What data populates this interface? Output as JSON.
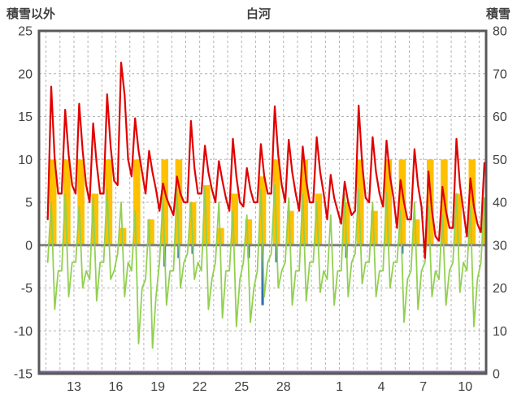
{
  "header": {
    "left_axis_title": "積雪以外",
    "title": "白河",
    "right_axis_title": "積雪"
  },
  "chart_data": {
    "type": "line",
    "title": "白河",
    "style": {
      "grid_color": "#b3b3b3",
      "frame_color": "#595959",
      "zero_line_color": "#808080",
      "text_color": "#404040",
      "background": "#ffffff"
    },
    "left_axis": {
      "label": "積雪以外",
      "min": -15,
      "max": 25,
      "ticks": [
        25,
        20,
        15,
        10,
        5,
        0,
        -5,
        -10,
        -15
      ]
    },
    "right_axis": {
      "label": "積雪",
      "min": 0,
      "max": 80,
      "ticks": [
        80,
        70,
        60,
        50,
        40,
        30,
        20,
        10,
        0
      ]
    },
    "x_axis": {
      "tick_labels": [
        "13",
        "16",
        "19",
        "22",
        "25",
        "28",
        "1",
        "4",
        "7",
        "10"
      ],
      "tick_days": [
        2,
        5,
        8,
        11,
        14,
        17,
        21,
        24,
        27,
        30
      ],
      "domain_days": [
        -0.5,
        31.5
      ],
      "grid_every_days": 1
    },
    "series": [
      {
        "name": "yellow-bars",
        "type": "bar",
        "direction": "up",
        "color": "#ffc000",
        "bar_width_days": 0.5,
        "values_per_day": [
          10,
          10,
          10,
          6,
          10,
          2,
          10,
          3,
          10,
          10,
          5,
          7,
          2,
          6,
          3,
          8,
          10,
          4,
          10,
          6,
          0,
          5,
          10,
          4,
          10,
          10,
          3,
          10,
          10,
          6,
          10,
          5
        ]
      },
      {
        "name": "blue-bars",
        "type": "bar",
        "direction": "down",
        "color": "#2f6eb5",
        "bar_width_days": 0.18,
        "values_per_day": [
          0,
          0,
          0,
          0,
          0,
          0,
          0,
          0,
          2.5,
          1.5,
          1,
          0,
          0,
          0,
          1.5,
          7,
          2,
          0,
          0,
          0,
          0,
          1.5,
          0,
          0,
          0,
          1,
          0,
          0,
          0,
          0,
          0,
          0
        ]
      },
      {
        "name": "green-line",
        "type": "line",
        "color": "#92d050",
        "width": 1.8,
        "points_per_day": 4,
        "values": [
          -2,
          5,
          -7.5,
          -3,
          -3,
          6,
          -6,
          -2,
          -2,
          4.5,
          -5,
          -3,
          -4,
          5.5,
          -6.5,
          -2,
          -2,
          6.5,
          -4,
          -3,
          -1,
          5,
          -6,
          -2,
          -3,
          4,
          -11.5,
          -5,
          -4,
          3,
          -12,
          -6,
          -2,
          5.5,
          -7,
          -3,
          -3,
          6.5,
          -5,
          -2,
          -1,
          5,
          -4,
          -2,
          -3,
          6.8,
          -7.5,
          -4,
          -2,
          5,
          -8.5,
          -3,
          -3,
          4,
          -9.5,
          -4,
          -2,
          3.5,
          -9,
          -5,
          -3,
          6.5,
          -6,
          -2,
          -1,
          7,
          -5,
          -3,
          -2,
          5.5,
          -7,
          -3,
          -3,
          6,
          -6.5,
          -2,
          -2,
          5,
          -5.5,
          -3,
          -4,
          3.5,
          -7,
          -3,
          -3,
          6,
          -6,
          -2,
          -1,
          6.5,
          -4.5,
          -2,
          -2,
          5,
          -6,
          -3,
          -3,
          6.2,
          -5,
          -2,
          -2,
          4,
          -9,
          -4,
          -3,
          5,
          -7.5,
          -3,
          -2,
          4.5,
          -6,
          -3,
          -4,
          3.5,
          -7,
          -3,
          -2,
          6,
          -5.5,
          -2,
          -3,
          4.5,
          -9.5,
          -4,
          -2,
          5.5,
          -8.5,
          -3
        ]
      },
      {
        "name": "red-line",
        "type": "line",
        "color": "#e00000",
        "width": 2.2,
        "points_per_day": 4,
        "values": [
          3,
          18.5,
          10,
          6,
          6,
          15.8,
          10.5,
          7,
          6,
          16.5,
          11,
          7,
          5,
          14.2,
          9.5,
          6,
          6,
          17.6,
          11.5,
          7.5,
          7,
          21.3,
          17.5,
          10,
          8,
          14.8,
          11,
          8.5,
          6,
          11,
          8.5,
          6.5,
          4,
          7.2,
          5.5,
          4.5,
          3.5,
          8,
          6,
          5,
          5,
          14.5,
          9,
          6,
          6,
          11.6,
          8.5,
          6.5,
          5,
          9.8,
          7.5,
          5.5,
          4,
          12.4,
          8,
          5,
          4.5,
          9,
          6.5,
          5,
          5,
          11.8,
          8,
          6,
          6,
          16.2,
          10.5,
          7,
          5,
          12.3,
          8.5,
          6,
          4,
          11.5,
          7.5,
          5,
          5,
          12.6,
          8.5,
          6,
          3,
          8.2,
          5.5,
          4,
          2.5,
          7.4,
          5,
          3.5,
          4,
          16.3,
          9.5,
          5.5,
          5,
          12.6,
          8.5,
          6,
          4.5,
          12.2,
          8,
          5.5,
          2,
          7.6,
          5,
          3,
          3,
          11.2,
          7,
          4.5,
          -1.5,
          8.6,
          4,
          1,
          0.5,
          6.8,
          4,
          2,
          2,
          12.4,
          7,
          4,
          1,
          7.8,
          4.5,
          2.5,
          1.5,
          9.6,
          7,
          8
        ]
      },
      {
        "name": "purple-snow-line",
        "type": "baseline",
        "axis": "right",
        "value": 0,
        "color": "#8064a2"
      }
    ]
  }
}
